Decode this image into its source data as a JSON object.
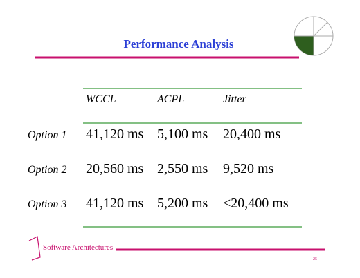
{
  "header": {
    "title": "Performance Analysis"
  },
  "table": {
    "columns": [
      "WCCL",
      "ACPL",
      "Jitter"
    ],
    "rows": [
      [
        "Option 1",
        "41,120 ms",
        "5,100 ms",
        "20,400 ms"
      ],
      [
        "Option 2",
        "20,560 ms",
        "2,550 ms",
        "9,520 ms"
      ],
      [
        "Option 3",
        "41,120 ms",
        "5,200 ms",
        "<20,400 ms"
      ]
    ]
  },
  "footer": {
    "text": "Software Architectures",
    "page": "25"
  }
}
